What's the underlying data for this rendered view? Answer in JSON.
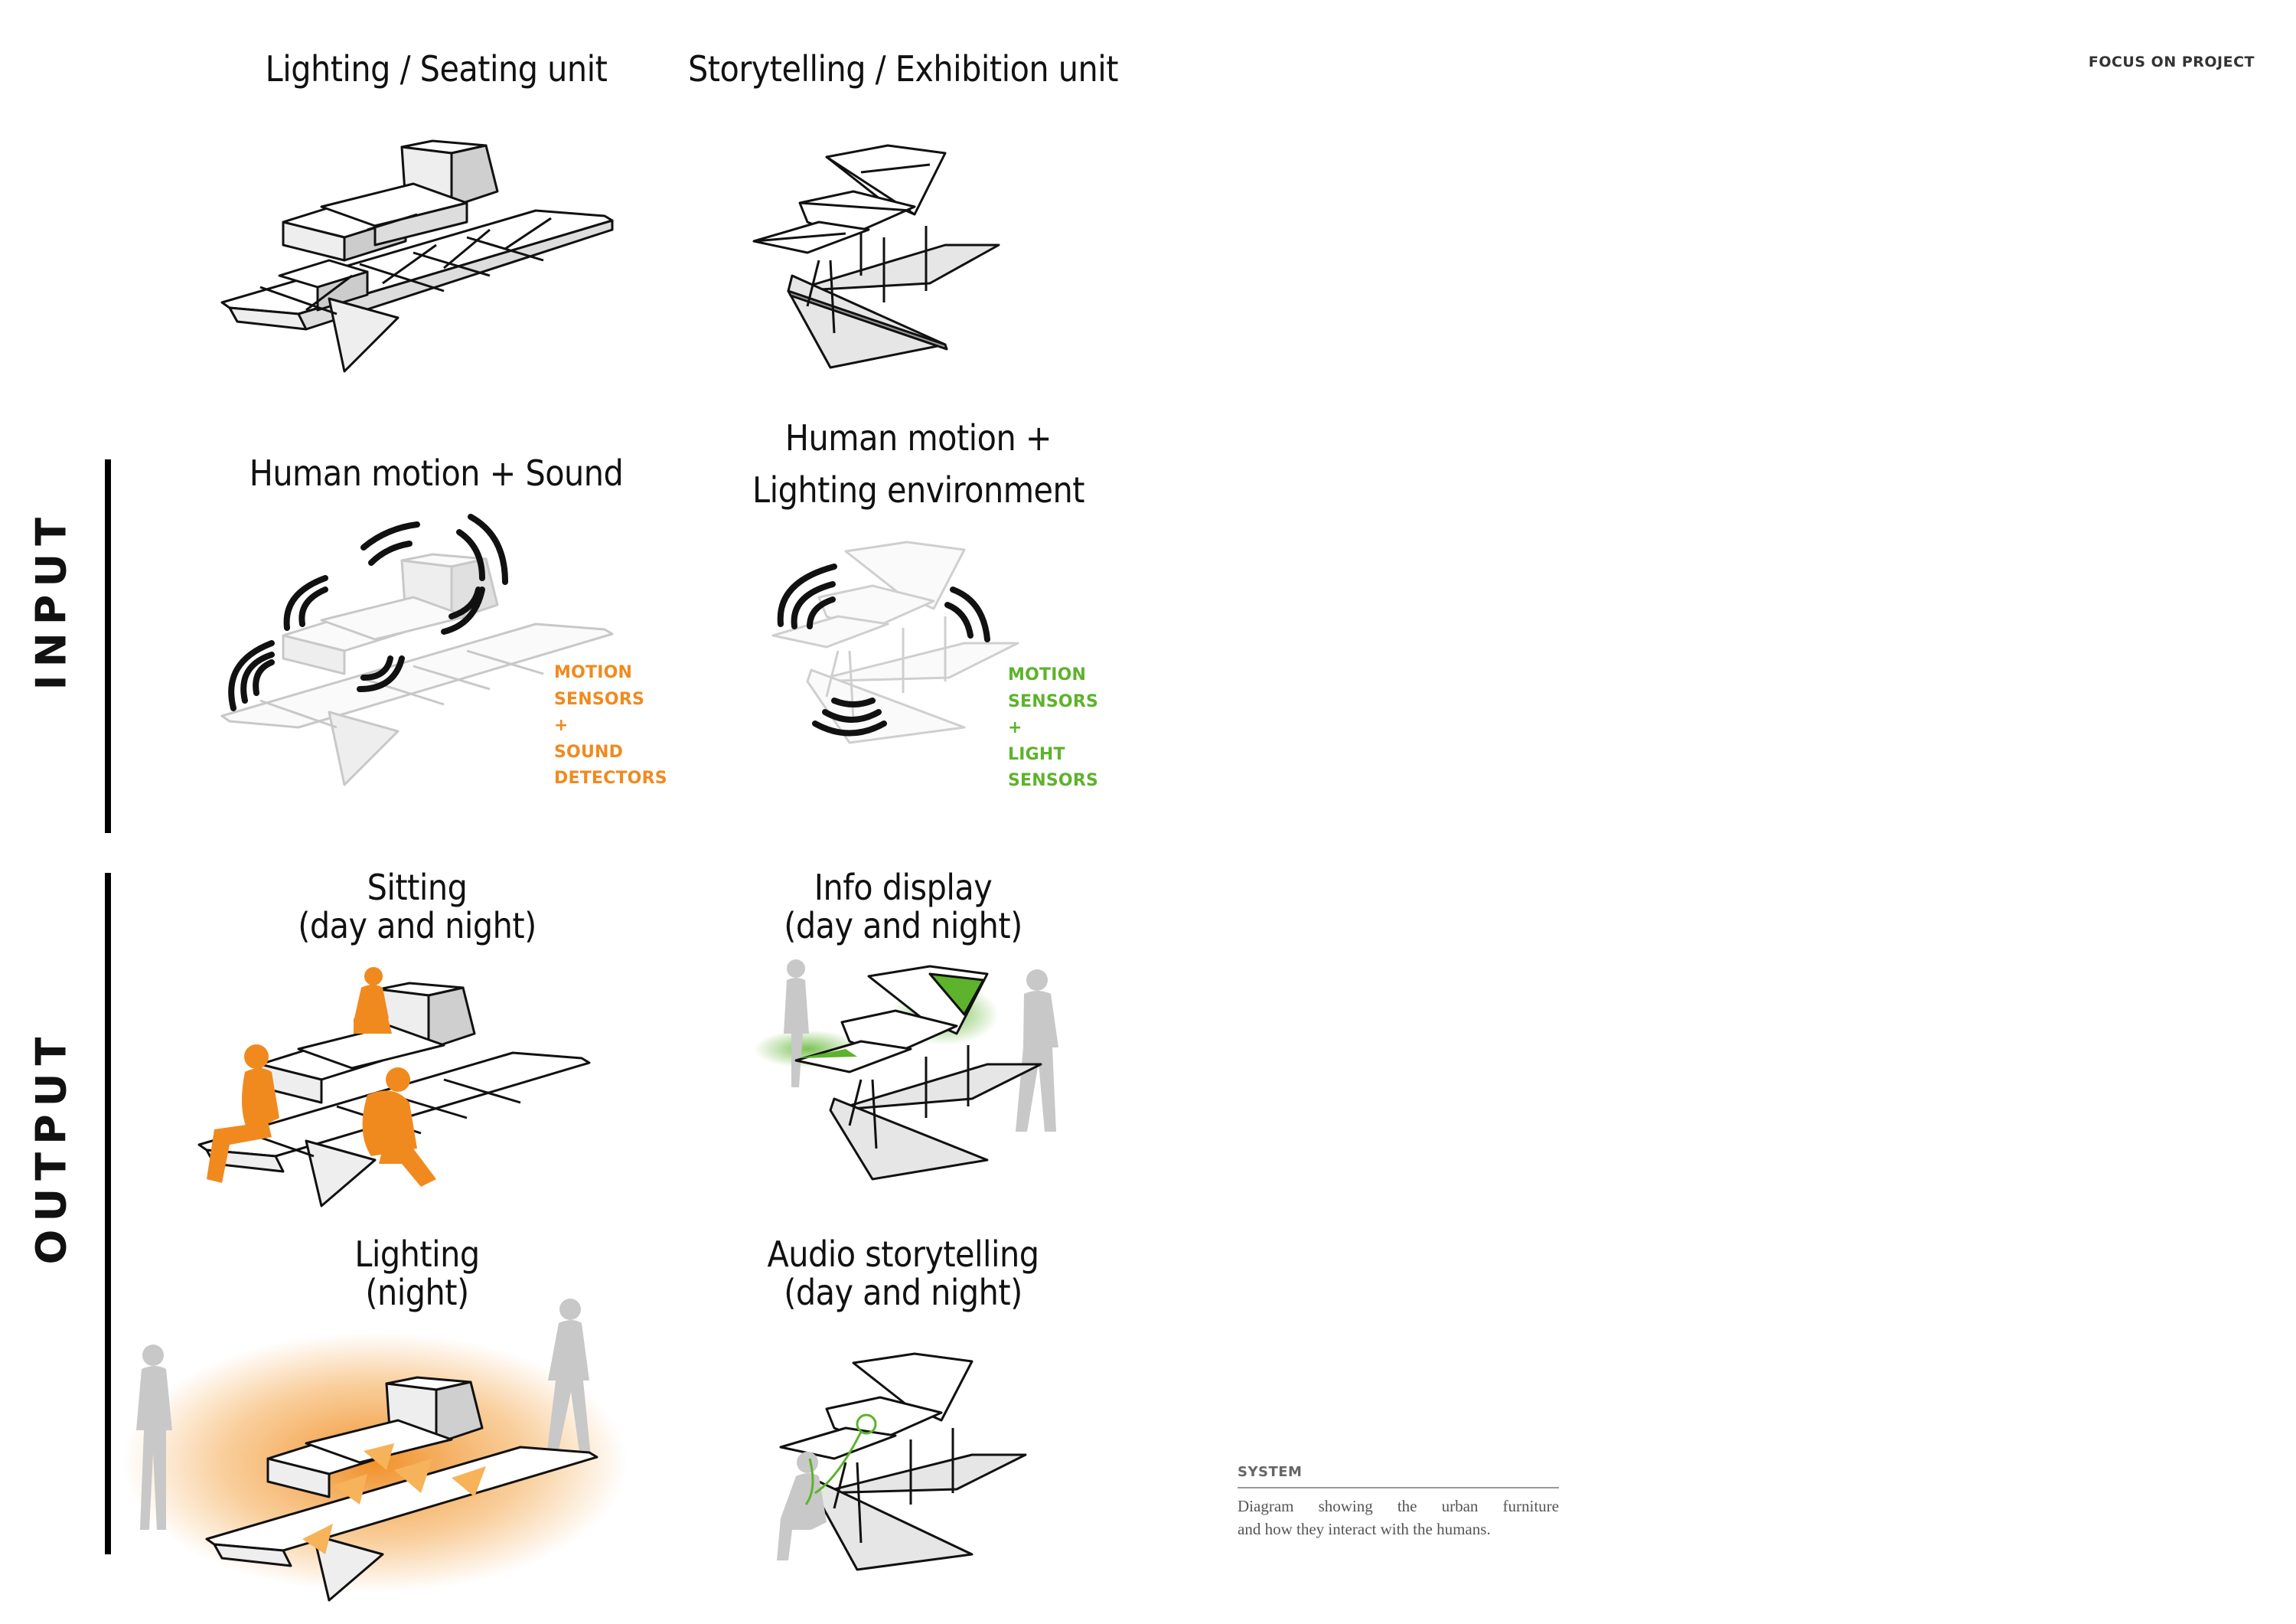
{
  "header": {
    "tag": "FOCUS ON PROJECT"
  },
  "units": {
    "seating_title": "Lighting / Seating unit",
    "exhibition_title": "Storytelling / Exhibition unit"
  },
  "input": {
    "label": "INPUT",
    "seating_title": "Human motion + Sound",
    "exhibition_title_line1": "Human motion +",
    "exhibition_title_line2": "Lighting environment",
    "seating_sensors": [
      "MOTION",
      "SENSORS",
      "+",
      "SOUND",
      "DETECTORS"
    ],
    "exhibition_sensors": [
      "MOTION",
      "SENSORS",
      "+",
      "LIGHT",
      "SENSORS"
    ]
  },
  "output": {
    "label": "OUTPUT",
    "sitting_line1": "Sitting",
    "sitting_line2": "(day and night)",
    "info_line1": "Info display",
    "info_line2": "(day and night)",
    "lighting_line1": "Lighting",
    "lighting_line2": "(night)",
    "audio_line1": "Audio storytelling",
    "audio_line2": "(day and night)"
  },
  "caption": {
    "title": "SYSTEM",
    "text_line1": "Diagram showing the urban furniture",
    "text_line2": "and how they interact with the humans."
  },
  "colors": {
    "orange": "#f08a1e",
    "green": "#5db32c",
    "grey_figure": "#c8c8c8",
    "line": "#111111"
  }
}
